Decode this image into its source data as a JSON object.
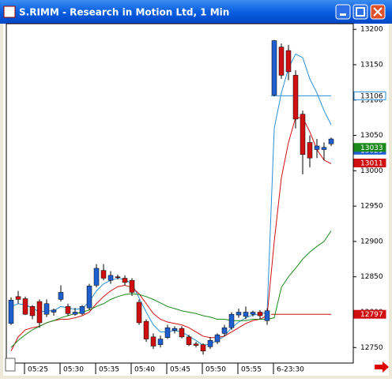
{
  "chart_data": {
    "type": "candlestick",
    "title": "S.RIMM - Research in Motion Ltd, 1 Min",
    "categories": [
      null,
      null,
      "05:25",
      null,
      null,
      null,
      null,
      "05:30",
      null,
      null,
      null,
      null,
      "05:35",
      null,
      null,
      null,
      null,
      "05:40",
      null,
      null,
      null,
      null,
      "05:45",
      null,
      null,
      null,
      null,
      "05:50",
      null,
      null,
      null,
      null,
      "05:55",
      null,
      null,
      null,
      null,
      "6-23:30",
      null,
      null,
      null,
      null,
      null,
      null,
      null,
      null
    ],
    "open": [
      12784,
      12822,
      12819,
      12808,
      12815,
      12797,
      12800,
      12818,
      12808,
      12797,
      12798,
      12806,
      12838,
      12859,
      12845,
      12850,
      12848,
      12845,
      12814,
      12787,
      12765,
      12754,
      12764,
      12774,
      12777,
      12765,
      12755,
      12754,
      12751,
      12758,
      12770,
      12778,
      12796,
      12794,
      12797,
      12800,
      12788,
      13107,
      13175,
      13170,
      13135,
      13080,
      13040,
      13030,
      13030,
      13038
    ],
    "high": [
      12821,
      12830,
      12822,
      12810,
      12818,
      12818,
      12805,
      12838,
      12812,
      12806,
      12810,
      12840,
      12868,
      12868,
      12858,
      12853,
      12852,
      12848,
      12818,
      12790,
      12770,
      12767,
      12782,
      12780,
      12780,
      12768,
      12758,
      12756,
      12765,
      12770,
      12782,
      12800,
      12805,
      12808,
      12802,
      12803,
      12805,
      13185,
      13180,
      13178,
      13142,
      13085,
      13050,
      13045,
      13040,
      13047
    ],
    "low": [
      12782,
      12812,
      12796,
      12790,
      12778,
      12793,
      12795,
      12815,
      12795,
      12795,
      12796,
      12803,
      12835,
      12845,
      12840,
      12846,
      12838,
      12823,
      12782,
      12758,
      12748,
      12750,
      12762,
      12770,
      12763,
      12752,
      12750,
      12740,
      12748,
      12755,
      12766,
      12775,
      12792,
      12790,
      12794,
      12790,
      12782,
      13105,
      13130,
      13128,
      13060,
      12995,
      13005,
      13018,
      13015,
      13035
    ],
    "close": [
      12817,
      12818,
      12797,
      12795,
      12785,
      12812,
      12803,
      12828,
      12798,
      12800,
      12808,
      12837,
      12862,
      12848,
      12852,
      12849,
      12842,
      12828,
      12785,
      12762,
      12752,
      12762,
      12778,
      12777,
      12765,
      12754,
      12753,
      12745,
      12760,
      12768,
      12778,
      12797,
      12800,
      12800,
      12800,
      12795,
      12802,
      13184,
      13135,
      13140,
      13073,
      13023,
      13018,
      13035,
      13033,
      13045
    ],
    "up_color": "#1f5fcf",
    "down_color": "#d01010",
    "lines": [
      {
        "color": "#2a8fd8",
        "values": [
          12808,
          12812,
          12810,
          12806,
          12800,
          12802,
          12802,
          12808,
          12806,
          12804,
          12805,
          12815,
          12830,
          12840,
          12845,
          12848,
          12846,
          12840,
          12820,
          12800,
          12782,
          12772,
          12772,
          12774,
          12772,
          12766,
          12760,
          12753,
          12755,
          12760,
          12766,
          12778,
          12786,
          12792,
          12796,
          12797,
          12800,
          13060,
          13110,
          13145,
          13165,
          13160,
          13130,
          13110,
          13085,
          13065
        ]
      },
      {
        "color": "#d01010",
        "values": [
          12745,
          12765,
          12775,
          12778,
          12780,
          12785,
          12788,
          12790,
          12790,
          12792,
          12795,
          12800,
          12812,
          12822,
          12830,
          12836,
          12838,
          12835,
          12826,
          12812,
          12798,
          12790,
          12786,
          12784,
          12782,
          12778,
          12772,
          12766,
          12764,
          12764,
          12766,
          12772,
          12778,
          12784,
          12788,
          12790,
          12795,
          12900,
          12990,
          13040,
          13075,
          13075,
          13055,
          13030,
          13015,
          13010
        ]
      },
      {
        "color": "#1a8a1a",
        "values": [
          12750,
          12760,
          12768,
          12775,
          12780,
          12785,
          12788,
          12792,
          12795,
          12798,
          12800,
          12803,
          12808,
          12812,
          12818,
          12822,
          12825,
          12826,
          12825,
          12822,
          12818,
          12813,
          12808,
          12805,
          12802,
          12800,
          12798,
          12795,
          12793,
          12790,
          12790,
          12788,
          12788,
          12788,
          12790,
          12790,
          12790,
          12792,
          12835,
          12850,
          12862,
          12875,
          12885,
          12893,
          12900,
          12915
        ]
      }
    ],
    "hlines": [
      {
        "value": 13106,
        "color": "#2a8fd8",
        "x0": 37
      },
      {
        "value": 12797,
        "color": "#d01010",
        "x0": 37
      }
    ],
    "price_labels": [
      {
        "value": 13106,
        "color": "#2a8fd8",
        "filled": false
      },
      {
        "value": 13029,
        "color": "#1f5fcf",
        "filled": true
      },
      {
        "value": 13033,
        "color": "#1a8a1a",
        "filled": true
      },
      {
        "value": 13011,
        "color": "#d01010",
        "filled": true
      },
      {
        "value": 12797,
        "color": "#d01010",
        "filled": true
      }
    ],
    "ylim": [
      12728,
      13208
    ],
    "yticks": [
      12750,
      12800,
      12850,
      12900,
      12950,
      13000,
      13050,
      13100,
      13150,
      13200
    ]
  }
}
